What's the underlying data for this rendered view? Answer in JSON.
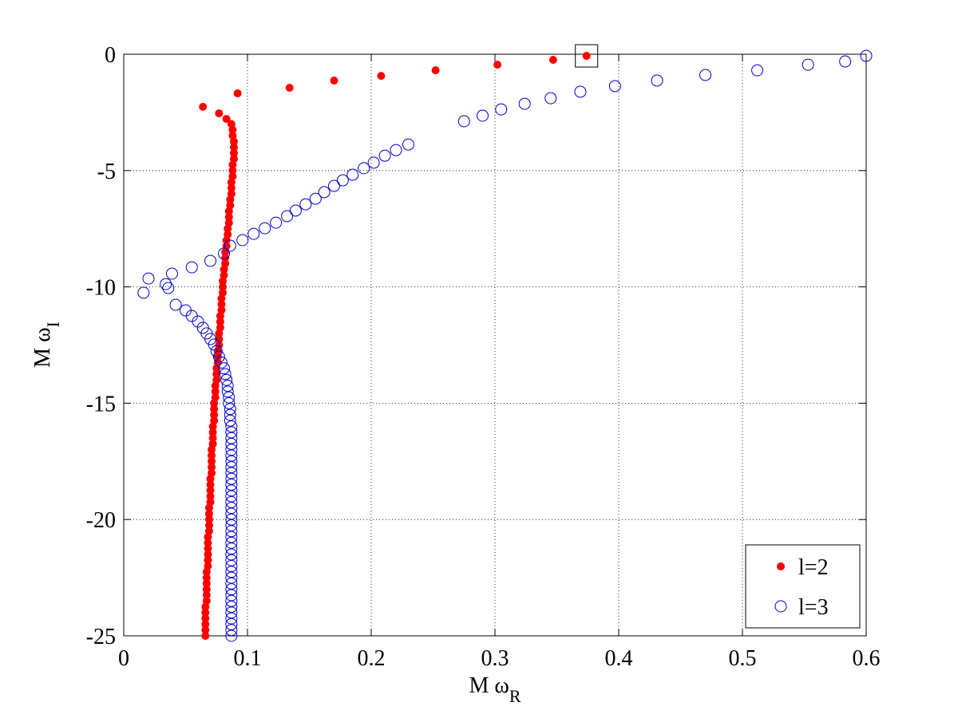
{
  "chart_data": {
    "type": "scatter",
    "x_label": "M ω",
    "x_label_sub": "R",
    "y_label": "M ω",
    "y_label_sub": "I",
    "xlim": [
      0,
      0.6
    ],
    "xticks": [
      0,
      0.1,
      0.2,
      0.3,
      0.4,
      0.5,
      0.6
    ],
    "ylim": [
      -25,
      0
    ],
    "yticks": [
      -25,
      -20,
      -15,
      -10,
      -5,
      0
    ],
    "grid": true,
    "legend": "lower right",
    "highlight": {
      "x": 0.374,
      "y": -0.07
    },
    "series": [
      {
        "name": "l=2",
        "color": "#ff0000",
        "marker": "dot",
        "x": [
          0.374,
          0.347,
          0.302,
          0.252,
          0.208,
          0.17,
          0.134,
          0.092,
          0.064,
          0.077,
          0.083,
          0.087,
          0.088,
          0.088,
          0.089,
          0.089,
          0.089,
          0.089,
          0.088,
          0.088,
          0.088,
          0.087,
          0.087,
          0.087,
          0.086,
          0.086,
          0.085,
          0.085,
          0.085,
          0.084,
          0.084,
          0.083,
          0.083,
          0.082,
          0.082,
          0.082,
          0.081,
          0.081,
          0.08,
          0.08,
          0.08,
          0.079,
          0.079,
          0.079,
          0.078,
          0.078,
          0.078,
          0.077,
          0.077,
          0.077,
          0.076,
          0.076,
          0.076,
          0.075,
          0.075,
          0.075,
          0.074,
          0.074,
          0.074,
          0.073,
          0.073,
          0.073,
          0.073,
          0.072,
          0.072,
          0.072,
          0.072,
          0.071,
          0.071,
          0.071,
          0.071,
          0.071,
          0.07,
          0.07,
          0.07,
          0.07,
          0.07,
          0.069,
          0.069,
          0.069,
          0.069,
          0.069,
          0.068,
          0.068,
          0.068,
          0.068,
          0.068,
          0.068,
          0.067,
          0.067,
          0.067,
          0.067,
          0.067,
          0.067,
          0.066,
          0.066,
          0.066,
          0.066,
          0.066,
          0.066
        ],
        "values": [
          -0.07,
          -0.24,
          -0.45,
          -0.69,
          -0.93,
          -1.13,
          -1.44,
          -1.68,
          -2.26,
          -2.54,
          -2.78,
          -3,
          -3.25,
          -3.5,
          -3.75,
          -4,
          -4.25,
          -4.5,
          -4.75,
          -5,
          -5.25,
          -5.5,
          -5.75,
          -6,
          -6.25,
          -6.5,
          -6.75,
          -7,
          -7.25,
          -7.5,
          -7.75,
          -8,
          -8.25,
          -8.5,
          -8.75,
          -9,
          -9.25,
          -9.5,
          -9.75,
          -10,
          -10.25,
          -10.5,
          -10.75,
          -11,
          -11.25,
          -11.5,
          -11.75,
          -12,
          -12.25,
          -12.5,
          -12.75,
          -13,
          -13.25,
          -13.5,
          -13.75,
          -14,
          -14.25,
          -14.5,
          -14.75,
          -15,
          -15.25,
          -15.5,
          -15.75,
          -16,
          -16.25,
          -16.5,
          -16.75,
          -17,
          -17.25,
          -17.5,
          -17.75,
          -18,
          -18.25,
          -18.5,
          -18.75,
          -19,
          -19.25,
          -19.5,
          -19.75,
          -20,
          -20.25,
          -20.5,
          -20.75,
          -21,
          -21.25,
          -21.5,
          -21.75,
          -22,
          -22.25,
          -22.5,
          -22.75,
          -23,
          -23.25,
          -23.5,
          -23.75,
          -24,
          -24.25,
          -24.5,
          -24.75,
          -25
        ]
      },
      {
        "name": "l=3",
        "color": "#0000cc",
        "marker": "circle",
        "x": [
          0.6,
          0.583,
          0.553,
          0.512,
          0.47,
          0.431,
          0.397,
          0.369,
          0.345,
          0.324,
          0.305,
          0.29,
          0.275,
          0.23,
          0.22,
          0.211,
          0.202,
          0.194,
          0.185,
          0.177,
          0.17,
          0.162,
          0.155,
          0.147,
          0.139,
          0.132,
          0.123,
          0.114,
          0.105,
          0.096,
          0.086,
          0.081,
          0.07,
          0.055,
          0.039,
          0.02,
          0.034,
          0.036,
          0.016,
          0.042,
          0.05,
          0.055,
          0.06,
          0.064,
          0.067,
          0.07,
          0.073,
          0.075,
          0.077,
          0.079,
          0.081,
          0.082,
          0.083,
          0.084,
          0.084,
          0.085,
          0.085,
          0.086,
          0.086,
          0.086,
          0.087,
          0.087,
          0.087,
          0.087,
          0.087,
          0.087,
          0.087,
          0.087,
          0.087,
          0.087,
          0.087,
          0.087,
          0.087,
          0.087,
          0.087,
          0.087,
          0.087,
          0.087,
          0.087,
          0.087,
          0.087,
          0.087,
          0.087,
          0.087,
          0.087,
          0.087,
          0.087,
          0.087,
          0.087,
          0.087,
          0.087,
          0.087,
          0.087,
          0.087,
          0.087,
          0.087,
          0.087
        ],
        "values": [
          -0.07,
          -0.31,
          -0.45,
          -0.69,
          -0.89,
          -1.13,
          -1.37,
          -1.61,
          -1.89,
          -2.13,
          -2.37,
          -2.64,
          -2.88,
          -3.88,
          -4.12,
          -4.36,
          -4.66,
          -4.9,
          -5.18,
          -5.42,
          -5.66,
          -5.93,
          -6.21,
          -6.45,
          -6.72,
          -6.96,
          -7.24,
          -7.48,
          -7.72,
          -7.99,
          -8.23,
          -8.57,
          -8.88,
          -9.16,
          -9.43,
          -9.64,
          -9.88,
          -10.05,
          -10.25,
          -10.77,
          -11.01,
          -11.25,
          -11.49,
          -11.76,
          -12,
          -12.24,
          -12.48,
          -12.76,
          -13,
          -13.25,
          -13.5,
          -13.75,
          -14,
          -14.25,
          -14.5,
          -14.75,
          -15,
          -15.25,
          -15.5,
          -15.75,
          -16,
          -16.25,
          -16.5,
          -16.75,
          -17,
          -17.25,
          -17.5,
          -17.75,
          -18,
          -18.25,
          -18.5,
          -18.75,
          -19,
          -19.25,
          -19.5,
          -19.75,
          -20,
          -20.25,
          -20.5,
          -20.75,
          -21,
          -21.25,
          -21.5,
          -21.75,
          -22,
          -22.25,
          -22.5,
          -22.75,
          -23,
          -23.25,
          -23.5,
          -23.75,
          -24,
          -24.25,
          -24.5,
          -24.75,
          -25
        ]
      }
    ]
  }
}
